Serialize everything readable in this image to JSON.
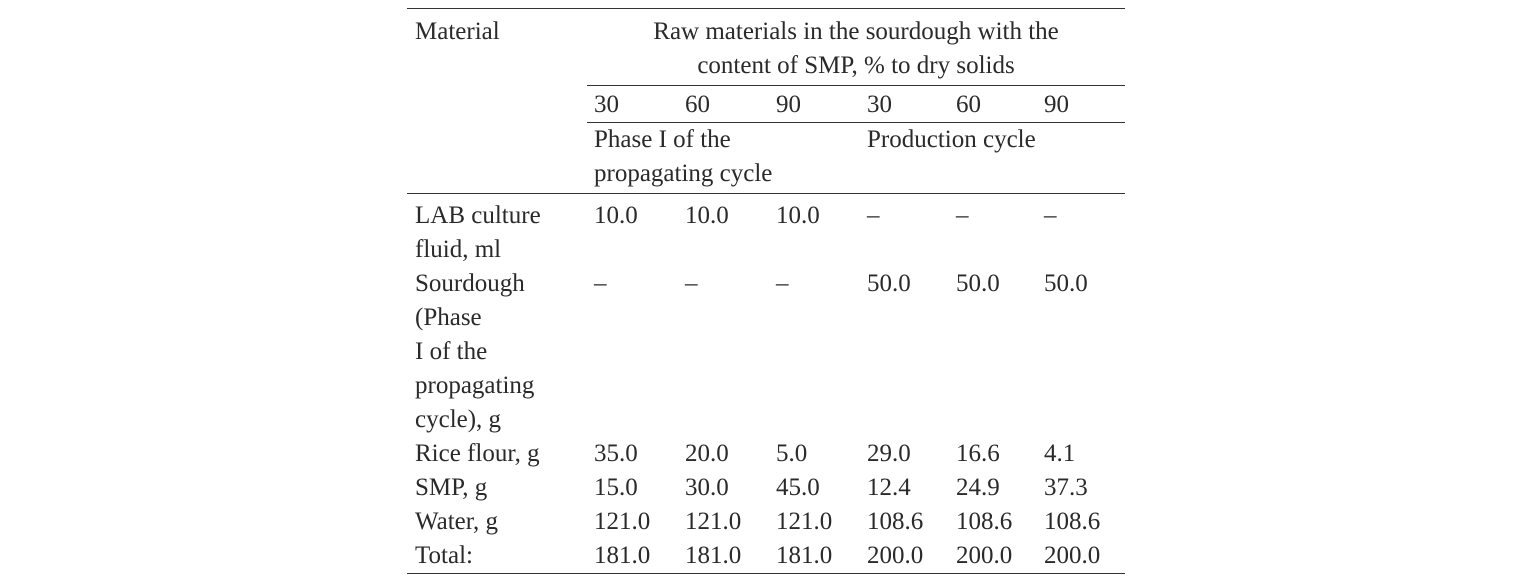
{
  "table": {
    "header": {
      "material": "Material",
      "group_title_line1": "Raw materials in the sourdough with the",
      "group_title_line2": "content of SMP, % to dry solids",
      "smp_levels": [
        "30",
        "60",
        "90",
        "30",
        "60",
        "90"
      ],
      "phase_label_line1": "Phase I of the",
      "phase_label_line2": "propagating cycle",
      "production_label": "Production cycle"
    },
    "rows": [
      {
        "label_lines": [
          "LAB culture",
          "fluid, ml"
        ],
        "values": [
          "10.0",
          "10.0",
          "10.0",
          "–",
          "–",
          "–"
        ]
      },
      {
        "label_lines": [
          "Sourdough",
          "(Phase",
          "I of the",
          "propagating",
          "cycle), g"
        ],
        "values": [
          "–",
          "–",
          "–",
          "50.0",
          "50.0",
          "50.0"
        ]
      },
      {
        "label_lines": [
          "Rice flour, g"
        ],
        "values": [
          "35.0",
          "20.0",
          "5.0",
          "29.0",
          "16.6",
          "4.1"
        ]
      },
      {
        "label_lines": [
          "SMP, g"
        ],
        "values": [
          "15.0",
          "30.0",
          "45.0",
          "12.4",
          "24.9",
          "37.3"
        ]
      },
      {
        "label_lines": [
          "Water, g"
        ],
        "values": [
          "121.0",
          "121.0",
          "121.0",
          "108.6",
          "108.6",
          "108.6"
        ]
      },
      {
        "label_lines": [
          "Total:"
        ],
        "values": [
          "181.0",
          "181.0",
          "181.0",
          "200.0",
          "200.0",
          "200.0"
        ]
      }
    ]
  }
}
